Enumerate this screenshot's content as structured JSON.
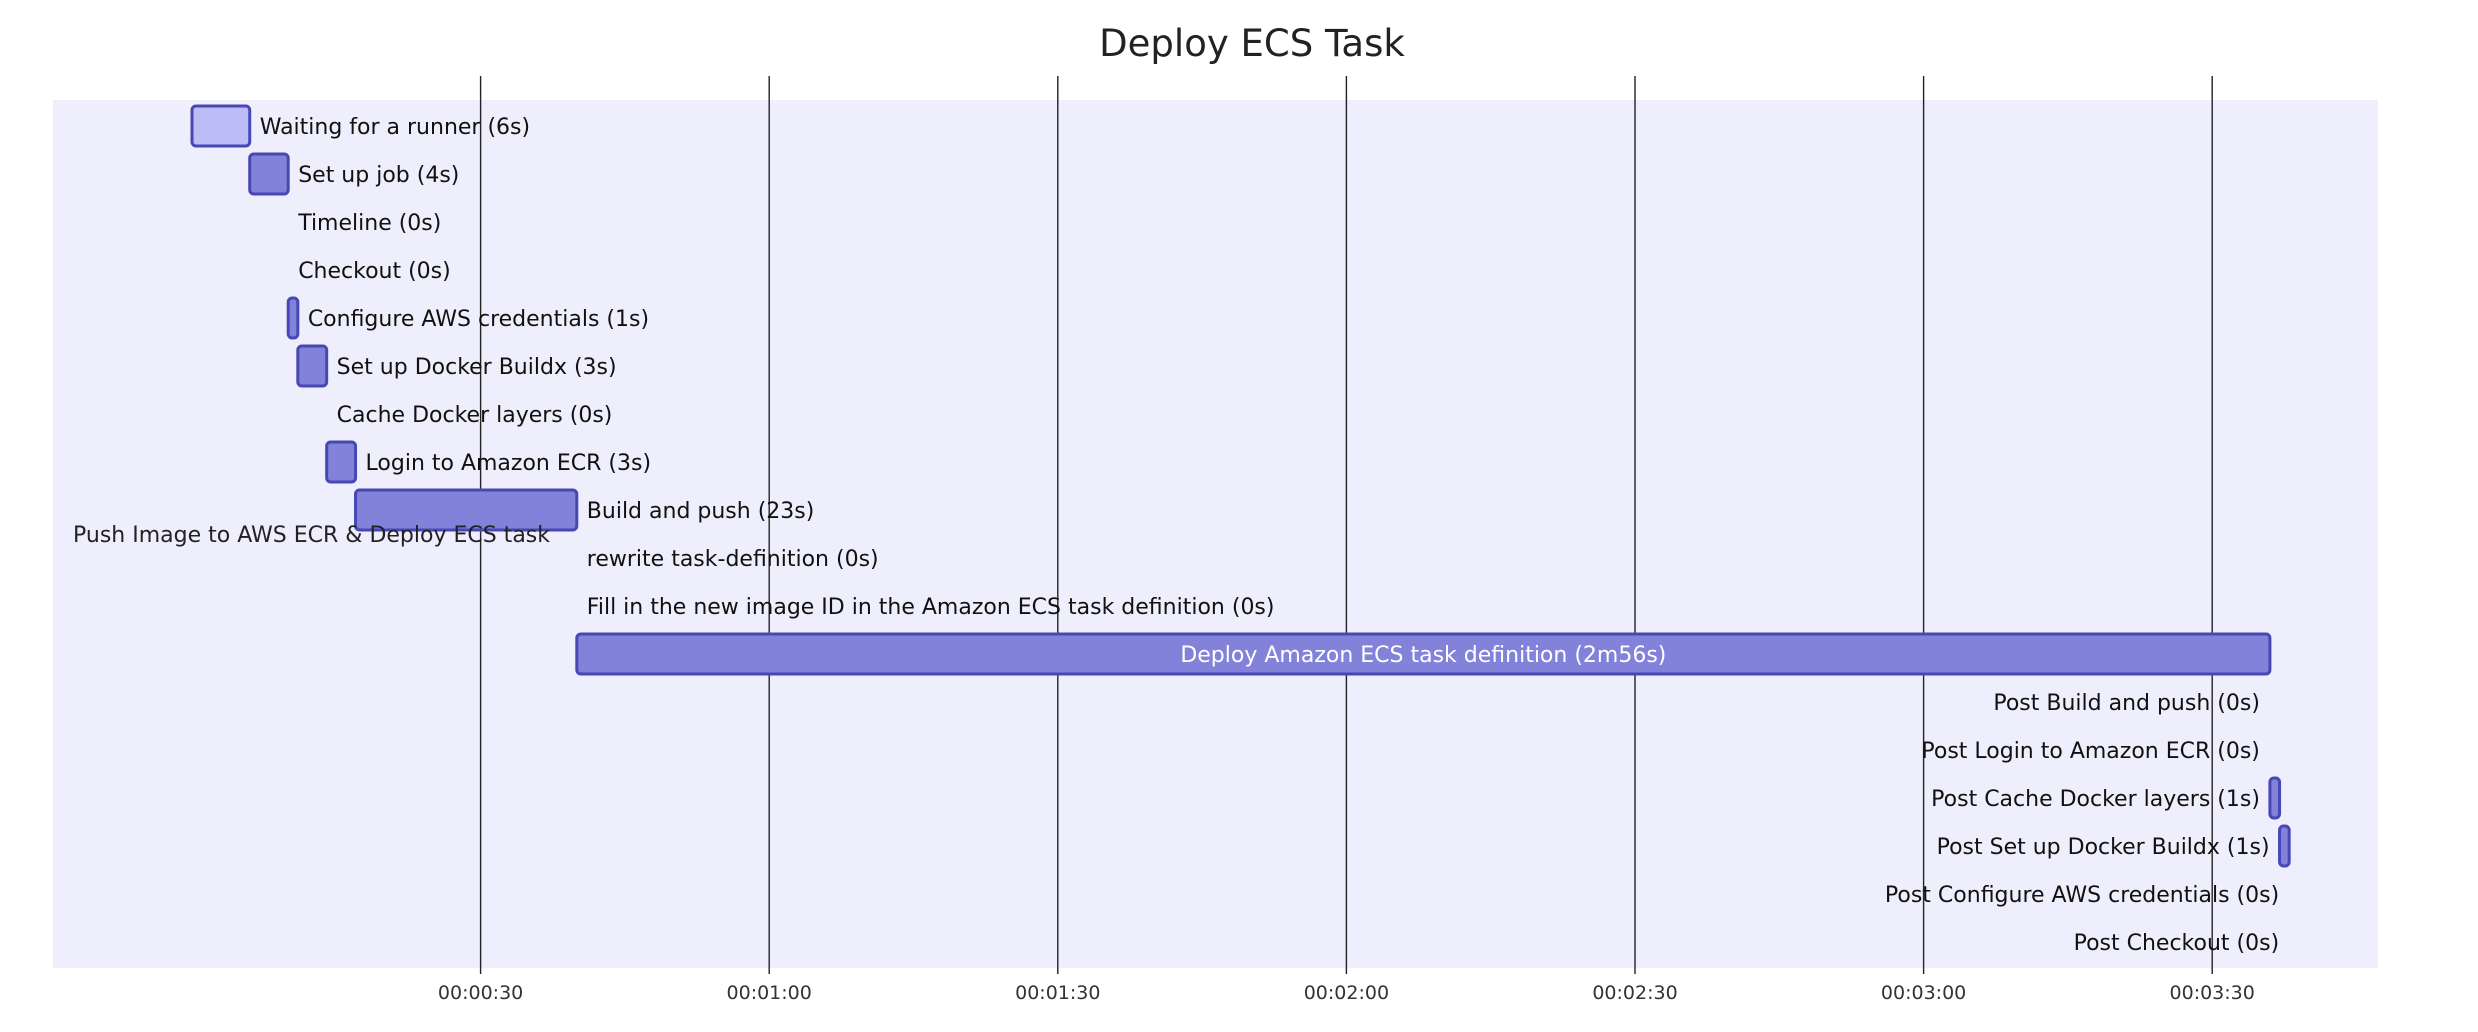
{
  "chart_data": {
    "type": "gantt",
    "title": "Deploy ECS Task",
    "section": "Push Image to AWS ECR & Deploy ECS task",
    "x_unit": "elapsed time (hh:mm:ss)",
    "xlim": [
      0,
      240
    ],
    "x_ticks": [
      "00:00:30",
      "00:01:00",
      "00:01:30",
      "00:02:00",
      "00:02:30",
      "00:03:00",
      "00:03:30"
    ],
    "grid": true,
    "colors": {
      "section_bg": "#EEEEFC",
      "bar_fill": "#8282DA",
      "bar_fill_first": "#BCBCF6",
      "bar_stroke": "#4848B4",
      "grid": "#222222"
    },
    "tasks": [
      {
        "name": "Waiting for a runner",
        "duration_label": "6s",
        "start": 0,
        "end": 6
      },
      {
        "name": "Set up job",
        "duration_label": "4s",
        "start": 6,
        "end": 10
      },
      {
        "name": "Timeline",
        "duration_label": "0s",
        "start": 10,
        "end": 10
      },
      {
        "name": "Checkout",
        "duration_label": "0s",
        "start": 10,
        "end": 10
      },
      {
        "name": "Configure AWS credentials",
        "duration_label": "1s",
        "start": 10,
        "end": 11
      },
      {
        "name": "Set up Docker Buildx",
        "duration_label": "3s",
        "start": 11,
        "end": 14
      },
      {
        "name": "Cache Docker layers",
        "duration_label": "0s",
        "start": 14,
        "end": 14
      },
      {
        "name": "Login to Amazon ECR",
        "duration_label": "3s",
        "start": 14,
        "end": 17
      },
      {
        "name": "Build and push",
        "duration_label": "23s",
        "start": 17,
        "end": 40
      },
      {
        "name": "rewrite task-definition",
        "duration_label": "0s",
        "start": 40,
        "end": 40
      },
      {
        "name": "Fill in the new image ID in the Amazon ECS task definition",
        "duration_label": "0s",
        "start": 40,
        "end": 40
      },
      {
        "name": "Deploy Amazon ECS task definition",
        "duration_label": "2m56s",
        "start": 40,
        "end": 216
      },
      {
        "name": "Post Build and push",
        "duration_label": "0s",
        "start": 216,
        "end": 216
      },
      {
        "name": "Post Login to Amazon ECR",
        "duration_label": "0s",
        "start": 216,
        "end": 216
      },
      {
        "name": "Post Cache Docker layers",
        "duration_label": "1s",
        "start": 216,
        "end": 217
      },
      {
        "name": "Post Set up Docker Buildx",
        "duration_label": "1s",
        "start": 217,
        "end": 218
      },
      {
        "name": "Post Configure AWS credentials",
        "duration_label": "0s",
        "start": 218,
        "end": 218
      },
      {
        "name": "Post Checkout",
        "duration_label": "0s",
        "start": 218,
        "end": 218
      }
    ]
  }
}
